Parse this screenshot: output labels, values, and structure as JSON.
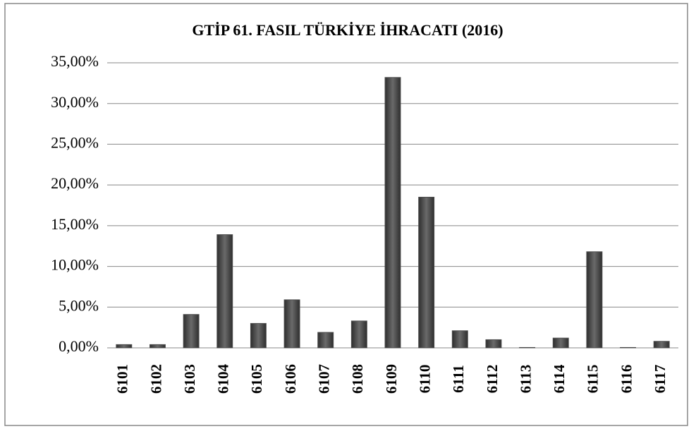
{
  "chart_data": {
    "type": "bar",
    "title": "GTİP 61. FASIL TÜRKİYE İHRACATI (2016)",
    "categories": [
      "6101",
      "6102",
      "6103",
      "6104",
      "6105",
      "6106",
      "6107",
      "6108",
      "6109",
      "6110",
      "6111",
      "6112",
      "6113",
      "6114",
      "6115",
      "6116",
      "6117"
    ],
    "values": [
      0.4,
      0.4,
      4.1,
      13.9,
      3.0,
      5.9,
      1.9,
      3.3,
      33.2,
      18.5,
      2.1,
      1.0,
      0.05,
      1.2,
      11.8,
      0.05,
      0.8
    ],
    "color": "#4d4d4d",
    "ylim": [
      0,
      35
    ],
    "yticks": [
      {
        "value": 0,
        "label": "0,00%"
      },
      {
        "value": 5,
        "label": "5,00%"
      },
      {
        "value": 10,
        "label": "10,00%"
      },
      {
        "value": 15,
        "label": "15,00%"
      },
      {
        "value": 20,
        "label": "20,00%"
      },
      {
        "value": 25,
        "label": "25,00%"
      },
      {
        "value": 30,
        "label": "30,00%"
      },
      {
        "value": 35,
        "label": "35,00%"
      }
    ],
    "grid": true
  }
}
